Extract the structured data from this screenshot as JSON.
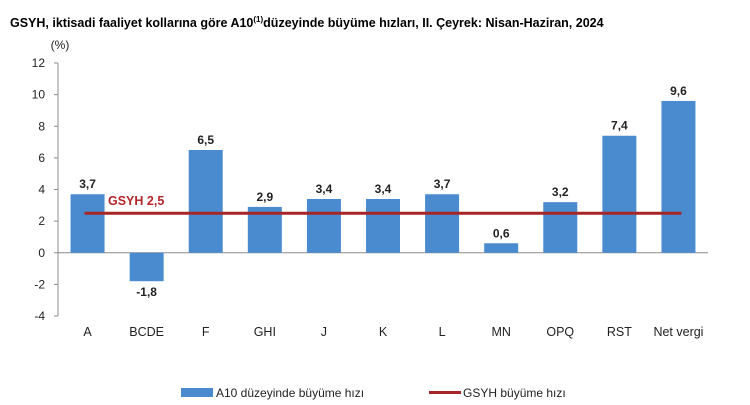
{
  "title": {
    "pre": "GSYH, iktisadi faaliyet kollarına göre A10",
    "sup": "(1)",
    "post": "düzeyinde büyüme hızları, II. Çeyrek: Nisan-Haziran, 2024"
  },
  "chart_data": {
    "type": "bar",
    "title": "GSYH, iktisadi faaliyet kollarına göre A10(1)düzeyinde büyüme hızları, II. Çeyrek: Nisan-Haziran, 2024",
    "ylabel": "(%)",
    "ylim": [
      -4,
      12
    ],
    "yticks": [
      "12",
      "10",
      "8",
      "6",
      "4",
      "2",
      "0",
      "-2",
      "-4"
    ],
    "categories": [
      "A",
      "BCDE",
      "F",
      "GHI",
      "J",
      "K",
      "L",
      "MN",
      "OPQ",
      "RST",
      "Net vergi"
    ],
    "series": [
      {
        "name": "A10 düzeyinde büyüme hızı",
        "values": [
          3.7,
          -1.8,
          6.5,
          2.9,
          3.4,
          3.4,
          3.7,
          0.6,
          3.2,
          7.4,
          9.6
        ],
        "labels": [
          "3,7",
          "-1,8",
          "6,5",
          "2,9",
          "3,4",
          "3,4",
          "3,7",
          "0,6",
          "3,2",
          "7,4",
          "9,6"
        ],
        "color": "#4a8bd0"
      }
    ],
    "reference_line": {
      "name": "GSYH büyüme hızı",
      "value": 2.5,
      "label": "GSYH 2,5",
      "color": "#a62628"
    },
    "grid": false,
    "legend_position": "bottom"
  }
}
